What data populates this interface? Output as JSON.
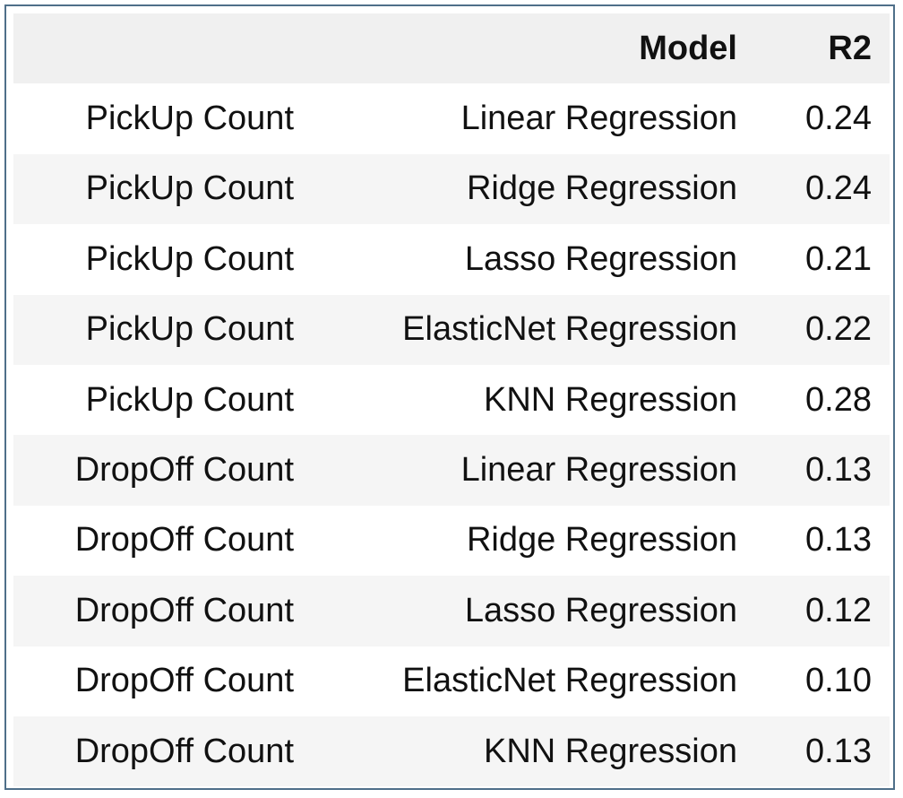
{
  "table": {
    "headers": [
      "",
      "Model",
      "R2"
    ],
    "rows": [
      [
        "PickUp Count",
        "Linear Regression",
        "0.24"
      ],
      [
        "PickUp Count",
        "Ridge Regression",
        "0.24"
      ],
      [
        "PickUp Count",
        "Lasso Regression",
        "0.21"
      ],
      [
        "PickUp Count",
        "ElasticNet Regression",
        "0.22"
      ],
      [
        "PickUp Count",
        "KNN Regression",
        "0.28"
      ],
      [
        "DropOff Count",
        "Linear Regression",
        "0.13"
      ],
      [
        "DropOff Count",
        "Ridge Regression",
        "0.13"
      ],
      [
        "DropOff Count",
        "Lasso Regression",
        "0.12"
      ],
      [
        "DropOff Count",
        "ElasticNet Regression",
        "0.10"
      ],
      [
        "DropOff Count",
        "KNN Regression",
        "0.13"
      ]
    ]
  },
  "colors": {
    "border": "#4f6f89",
    "header_bg": "#f0f0f0",
    "stripe_bg": "#f5f5f5",
    "text": "#111111"
  }
}
